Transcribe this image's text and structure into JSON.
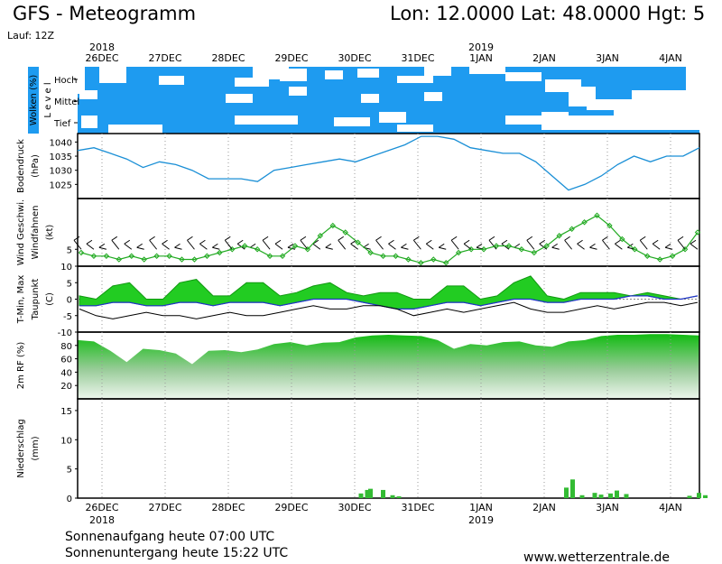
{
  "header": {
    "title": "GFS - Meteogramm",
    "location": "Lon: 12.0000 Lat: 48.0000 Hgt: 5",
    "run": "Lauf: 12Z"
  },
  "dates": {
    "labels": [
      "26DEC",
      "27DEC",
      "28DEC",
      "29DEC",
      "30DEC",
      "31DEC",
      "1JAN",
      "2JAN",
      "3JAN",
      "4JAN"
    ],
    "year_2018": "2018",
    "year_2019": "2019"
  },
  "footer": {
    "sunrise": "Sonnenaufgang heute 07:00 UTC",
    "sunset": "Sonnenuntergang heute 15:22 UTC",
    "site": "www.wetterzentrale.de"
  },
  "colors": {
    "cloud_bg": "#1e9bf0",
    "cloud": "#ffffff",
    "pressure": "#1a8fd6",
    "wind": "#22aa22",
    "temp_fill": "#22cc22",
    "temp_fill2": "#119911",
    "precip": "#33bb33"
  },
  "chart_data": [
    {
      "type": "heatmap",
      "ylabel": "Wolken (%)",
      "ylabel_side": "L e v e l",
      "levels": [
        "Hoch",
        "Mittel",
        "Tief"
      ]
    },
    {
      "type": "line",
      "ylabel": "Bodendruck",
      "yunit": "(hPa)",
      "yticks": [
        1025,
        1030,
        1035,
        1040
      ],
      "ylim": [
        1020,
        1043
      ],
      "x_days": [
        0,
        0.25,
        0.5,
        0.75,
        1,
        1.25,
        1.5,
        1.75,
        2,
        2.25,
        2.5,
        2.75,
        3,
        3.25,
        3.5,
        3.75,
        4,
        4.25,
        4.5,
        4.75,
        5,
        5.25,
        5.5,
        5.75,
        6,
        6.25,
        6.5,
        6.75,
        7,
        7.25,
        7.5,
        7.75,
        8,
        8.25,
        8.5,
        8.75,
        9,
        9.25,
        9.5
      ],
      "values": [
        1037,
        1038,
        1036,
        1034,
        1031,
        1033,
        1032,
        1030,
        1027,
        1027,
        1027,
        1026,
        1030,
        1031,
        1032,
        1033,
        1034,
        1033,
        1035,
        1037,
        1039,
        1042,
        1042,
        1041,
        1038,
        1037,
        1036,
        1036,
        1033,
        1028,
        1023,
        1025,
        1028,
        1032,
        1035,
        1033,
        1035,
        1035,
        1038
      ]
    },
    {
      "type": "line",
      "ylabel": "Wind Geschwi.",
      "ylabel2": "Windfahnen",
      "yunit": "(kt)",
      "yticks": [
        5
      ],
      "ylim": [
        0,
        20
      ],
      "values": [
        4,
        3,
        3,
        2,
        3,
        2,
        3,
        3,
        2,
        2,
        3,
        4,
        5,
        6,
        5,
        3,
        3,
        6,
        5,
        9,
        12,
        10,
        7,
        4,
        3,
        3,
        2,
        1,
        2,
        1,
        4,
        5,
        5,
        6,
        6,
        5,
        4,
        6,
        9,
        11,
        13,
        15,
        12,
        8,
        5,
        3,
        2,
        3,
        5,
        10
      ]
    },
    {
      "type": "area",
      "ylabel": "T-Min, Max",
      "ylabel2": "Taupunkt",
      "yunit": "(C)",
      "yticks": [
        -10,
        -5,
        0,
        5,
        10
      ],
      "ylim": [
        -10,
        10
      ],
      "tmin": [
        -2,
        -2,
        -1,
        -1,
        -2,
        -2,
        -1,
        -1,
        -2,
        -1,
        -1,
        -1,
        -2,
        -1,
        0,
        0,
        0,
        -1,
        -2,
        -3,
        -3,
        -2,
        -1,
        -1,
        -2,
        -1,
        0,
        0,
        -1,
        -1,
        0,
        0,
        0,
        1,
        1,
        0,
        0,
        1
      ],
      "tmax": [
        1,
        0,
        4,
        5,
        0,
        0,
        5,
        6,
        1,
        1,
        5,
        5,
        1,
        2,
        4,
        5,
        2,
        1,
        2,
        2,
        0,
        0,
        4,
        4,
        0,
        1,
        5,
        7,
        1,
        0,
        2,
        2,
        2,
        1,
        2,
        1,
        0,
        1
      ],
      "dewpoint": [
        -3,
        -5,
        -6,
        -5,
        -4,
        -5,
        -5,
        -6,
        -5,
        -4,
        -5,
        -5,
        -4,
        -3,
        -2,
        -3,
        -3,
        -2,
        -2,
        -3,
        -5,
        -4,
        -3,
        -4,
        -3,
        -2,
        -1,
        -3,
        -4,
        -4,
        -3,
        -2,
        -3,
        -2,
        -1,
        -1,
        -2,
        -1
      ]
    },
    {
      "type": "area",
      "ylabel": "2m RF (%)",
      "yticks": [
        20,
        40,
        60,
        80
      ],
      "ylim": [
        0,
        100
      ],
      "values": [
        88,
        86,
        72,
        55,
        75,
        73,
        68,
        52,
        72,
        73,
        70,
        74,
        82,
        85,
        80,
        84,
        85,
        92,
        95,
        96,
        95,
        94,
        88,
        75,
        82,
        80,
        85,
        86,
        80,
        78,
        86,
        88,
        94,
        96,
        96,
        97,
        97,
        96,
        95
      ]
    },
    {
      "type": "bar",
      "ylabel": "Niederschlag",
      "yunit": "(mm)",
      "yticks": [
        0,
        5,
        10,
        15
      ],
      "ylim": [
        0,
        17
      ],
      "bars": [
        [
          4.1,
          0.8
        ],
        [
          4.2,
          1.4
        ],
        [
          4.25,
          1.6
        ],
        [
          4.45,
          1.4
        ],
        [
          4.6,
          0.5
        ],
        [
          4.7,
          0.3
        ],
        [
          7.35,
          1.8
        ],
        [
          7.45,
          3.2
        ],
        [
          7.6,
          0.5
        ],
        [
          7.8,
          0.9
        ],
        [
          7.9,
          0.6
        ],
        [
          8.05,
          0.8
        ],
        [
          8.15,
          1.3
        ],
        [
          8.3,
          0.7
        ],
        [
          9.3,
          0.4
        ],
        [
          9.45,
          0.9
        ],
        [
          9.55,
          0.5
        ]
      ]
    }
  ]
}
